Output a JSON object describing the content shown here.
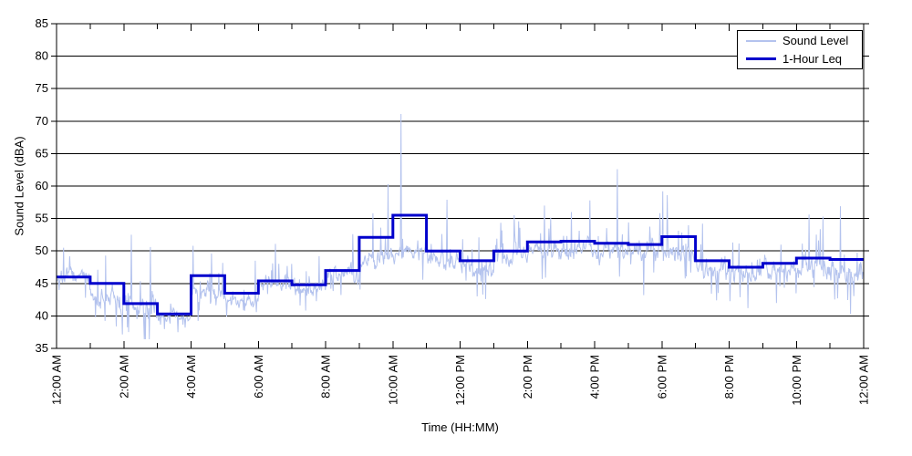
{
  "chart_data": {
    "type": "line",
    "title": "",
    "xlabel": "Time (HH:MM)",
    "ylabel": "Sound Level (dBA)",
    "ylim": [
      35,
      85
    ],
    "y_tick_step": 5,
    "y_tick_labels": [
      "35",
      "40",
      "45",
      "50",
      "55",
      "60",
      "65",
      "70",
      "75",
      "80",
      "85"
    ],
    "x_range_hours": [
      0,
      24
    ],
    "x_major_tick_every_hours": 2,
    "x_minor_tick_every_hours": 1,
    "x_tick_labels": [
      "12:00 AM",
      "2:00 AM",
      "4:00 AM",
      "6:00 AM",
      "8:00 AM",
      "10:00 AM",
      "12:00 PM",
      "2:00 PM",
      "4:00 PM",
      "6:00 PM",
      "8:00 PM",
      "10:00 PM",
      "12:00 AM"
    ],
    "grid": "horizontal-only",
    "legend_position": "top-right-inside",
    "colors": {
      "sound_level": "#b4c3ee",
      "leq": "#0000cc",
      "grid": "#000000",
      "axis": "#000000",
      "background": "#ffffff"
    },
    "series": [
      {
        "name": "Sound Level",
        "kind": "minute_samples",
        "color": "#b4c3ee",
        "line_width": 1,
        "samples_per_hour": 60,
        "seed": 7,
        "hourly_profile": [
          {
            "hour": 0,
            "base": 45.8,
            "spread": 1.3
          },
          {
            "hour": 1,
            "base": 42.6,
            "spread": 2.3
          },
          {
            "hour": 2,
            "base": 41.2,
            "spread": 2.5
          },
          {
            "hour": 3,
            "base": 39.8,
            "spread": 1.0
          },
          {
            "hour": 4,
            "base": 43.6,
            "spread": 2.3
          },
          {
            "hour": 5,
            "base": 42.3,
            "spread": 1.3
          },
          {
            "hour": 6,
            "base": 45.2,
            "spread": 1.2
          },
          {
            "hour": 7,
            "base": 44.2,
            "spread": 1.4
          },
          {
            "hour": 8,
            "base": 46.2,
            "spread": 1.6
          },
          {
            "hour": 9,
            "base": 49.2,
            "spread": 1.9
          },
          {
            "hour": 10,
            "base": 49.9,
            "spread": 1.8
          },
          {
            "hour": 11,
            "base": 48.5,
            "spread": 1.8
          },
          {
            "hour": 12,
            "base": 47.5,
            "spread": 1.9
          },
          {
            "hour": 13,
            "base": 49.2,
            "spread": 1.9
          },
          {
            "hour": 14,
            "base": 50.2,
            "spread": 1.8
          },
          {
            "hour": 15,
            "base": 50.4,
            "spread": 1.7
          },
          {
            "hour": 16,
            "base": 50.1,
            "spread": 1.8
          },
          {
            "hour": 17,
            "base": 49.9,
            "spread": 1.9
          },
          {
            "hour": 18,
            "base": 50.2,
            "spread": 2.1
          },
          {
            "hour": 19,
            "base": 47.4,
            "spread": 1.9
          },
          {
            "hour": 20,
            "base": 46.4,
            "spread": 1.9
          },
          {
            "hour": 21,
            "base": 47.0,
            "spread": 1.9
          },
          {
            "hour": 22,
            "base": 47.4,
            "spread": 2.0
          },
          {
            "hour": 23,
            "base": 47.0,
            "spread": 2.1
          }
        ],
        "notable_extremes": [
          {
            "hour": 0.2,
            "dBA": 50.5
          },
          {
            "hour": 0.85,
            "dBA": 42.8
          },
          {
            "hour": 1.15,
            "dBA": 39.8
          },
          {
            "hour": 1.45,
            "dBA": 49.3
          },
          {
            "hour": 2.21,
            "dBA": 52.5
          },
          {
            "hour": 2.6,
            "dBA": 36.4
          },
          {
            "hour": 2.78,
            "dBA": 50.6
          },
          {
            "hour": 3.6,
            "dBA": 37.5
          },
          {
            "hour": 3.81,
            "dBA": 38.2
          },
          {
            "hour": 4.05,
            "dBA": 50.8
          },
          {
            "hour": 4.6,
            "dBA": 49.6
          },
          {
            "hour": 5.05,
            "dBA": 39.9
          },
          {
            "hour": 5.9,
            "dBA": 48.5
          },
          {
            "hour": 6.5,
            "dBA": 51.1
          },
          {
            "hour": 7.8,
            "dBA": 49.2
          },
          {
            "hour": 8.8,
            "dBA": 52.6
          },
          {
            "hour": 9.4,
            "dBA": 55.8
          },
          {
            "hour": 9.85,
            "dBA": 60.3
          },
          {
            "hour": 10.23,
            "dBA": 71.1
          },
          {
            "hour": 11.6,
            "dBA": 57.9
          },
          {
            "hour": 12.5,
            "dBA": 43.0
          },
          {
            "hour": 12.75,
            "dBA": 42.6
          },
          {
            "hour": 13.6,
            "dBA": 55.5
          },
          {
            "hour": 14.5,
            "dBA": 57.0
          },
          {
            "hour": 15.3,
            "dBA": 56.0
          },
          {
            "hour": 15.85,
            "dBA": 57.8
          },
          {
            "hour": 16.67,
            "dBA": 62.6
          },
          {
            "hour": 17.45,
            "dBA": 43.2
          },
          {
            "hour": 18.02,
            "dBA": 59.2
          },
          {
            "hour": 18.15,
            "dBA": 58.6
          },
          {
            "hour": 19.2,
            "dBA": 54.2
          },
          {
            "hour": 20.1,
            "dBA": 51.3
          },
          {
            "hour": 20.55,
            "dBA": 41.2
          },
          {
            "hour": 21.4,
            "dBA": 42.0
          },
          {
            "hour": 22.37,
            "dBA": 55.6
          },
          {
            "hour": 22.79,
            "dBA": 55.3
          },
          {
            "hour": 23.3,
            "dBA": 56.9
          },
          {
            "hour": 23.6,
            "dBA": 40.3
          }
        ]
      },
      {
        "name": "1-Hour Leq",
        "kind": "hourly_step",
        "color": "#0000cc",
        "line_width": 3,
        "values_dBA": [
          46.0,
          45.0,
          41.9,
          40.3,
          46.2,
          43.5,
          45.4,
          44.8,
          47.0,
          52.1,
          55.5,
          50.0,
          48.5,
          50.0,
          51.4,
          51.5,
          51.2,
          51.0,
          52.2,
          48.5,
          47.5,
          48.1,
          48.9,
          48.7
        ]
      }
    ]
  }
}
